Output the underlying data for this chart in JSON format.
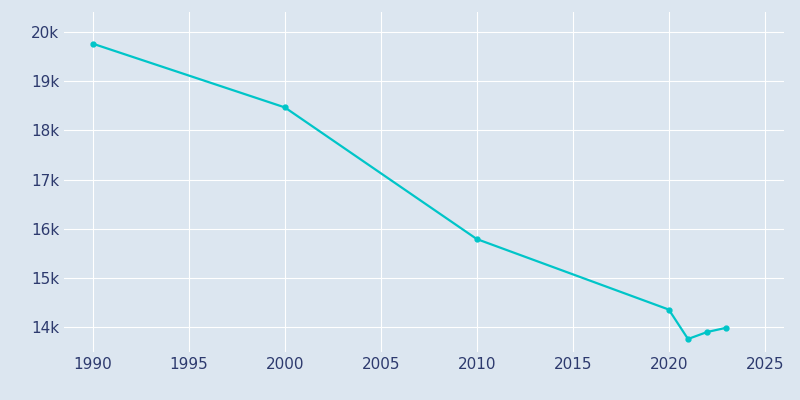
{
  "years": [
    1990,
    2000,
    2010,
    2020,
    2021,
    2022,
    2023
  ],
  "population": [
    19757,
    18464,
    15792,
    14361,
    13764,
    13906,
    13992
  ],
  "line_color": "#00C5C8",
  "marker": "o",
  "marker_size": 3.5,
  "bg_color": "#dce6f0",
  "plot_bg_color": "#dce6f0",
  "grid_color": "#ffffff",
  "xlim": [
    1988.5,
    2026
  ],
  "ylim": [
    13500,
    20400
  ],
  "xticks": [
    1990,
    1995,
    2000,
    2005,
    2010,
    2015,
    2020,
    2025
  ],
  "yticks": [
    14000,
    15000,
    16000,
    17000,
    18000,
    19000,
    20000
  ],
  "tick_color": "#2d3a6e",
  "tick_fontsize": 11,
  "linewidth": 1.6
}
